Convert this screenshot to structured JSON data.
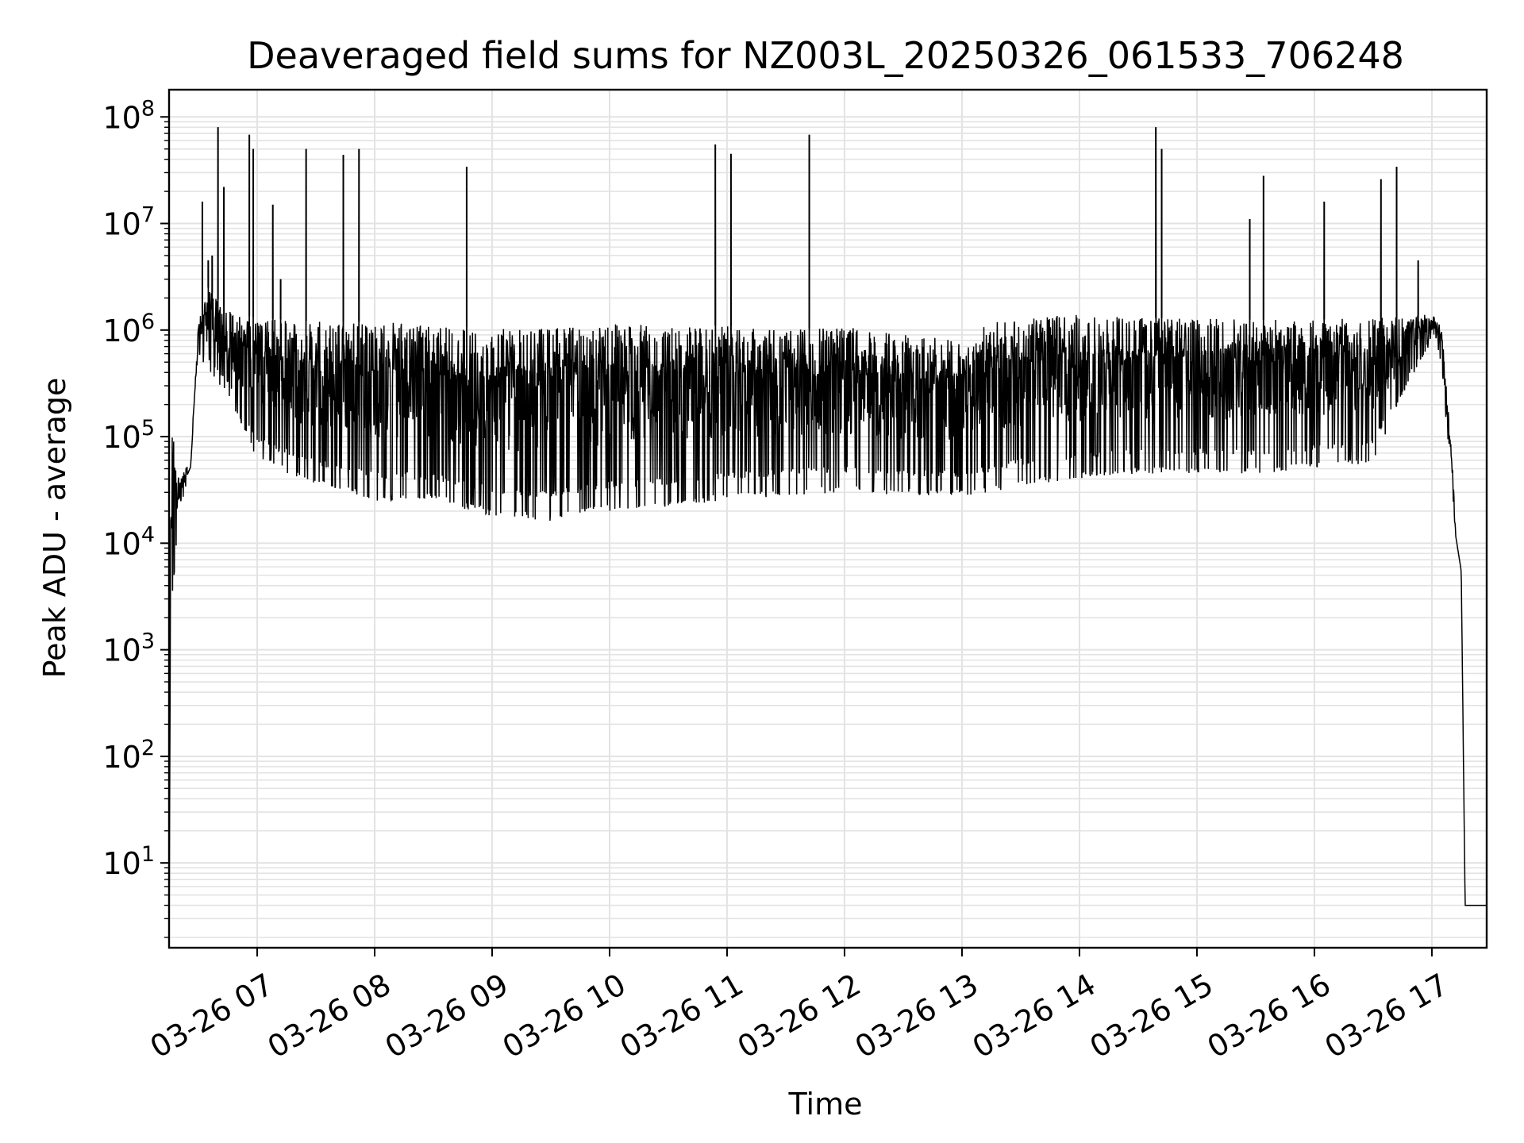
{
  "chart_data": {
    "type": "line",
    "title": "Deaveraged field sums for NZ003L_20250326_061533_706248",
    "xlabel": "Time",
    "ylabel": "Peak ADU - average",
    "yscale": "log",
    "ylim": [
      1.6,
      180000000
    ],
    "xlim": [
      "03-26 06:15",
      "03-26 17:28"
    ],
    "grid": "major and minor, light gray",
    "line_color": "#000000",
    "x_ticks": [
      "03-26 07",
      "03-26 08",
      "03-26 09",
      "03-26 10",
      "03-26 11",
      "03-26 12",
      "03-26 13",
      "03-26 14",
      "03-26 15",
      "03-26 16",
      "03-26 17"
    ],
    "y_ticks": [
      {
        "base": "10",
        "exp": "1"
      },
      {
        "base": "10",
        "exp": "2"
      },
      {
        "base": "10",
        "exp": "3"
      },
      {
        "base": "10",
        "exp": "4"
      },
      {
        "base": "10",
        "exp": "5"
      },
      {
        "base": "10",
        "exp": "6"
      },
      {
        "base": "10",
        "exp": "7"
      },
      {
        "base": "10",
        "exp": "8"
      }
    ],
    "envelope": [
      {
        "t": "06:15",
        "low": 1.6,
        "high": 1.6
      },
      {
        "t": "06:16",
        "low": 2000,
        "high": 150000
      },
      {
        "t": "06:20",
        "low": 20000,
        "high": 40000
      },
      {
        "t": "06:26",
        "low": 45000,
        "high": 60000
      },
      {
        "t": "06:30",
        "low": 600000,
        "high": 1200000
      },
      {
        "t": "06:35",
        "low": 400000,
        "high": 2500000
      },
      {
        "t": "06:45",
        "low": 250000,
        "high": 1500000
      },
      {
        "t": "07:00",
        "low": 60000,
        "high": 1300000
      },
      {
        "t": "07:30",
        "low": 35000,
        "high": 1200000
      },
      {
        "t": "08:00",
        "low": 25000,
        "high": 1200000
      },
      {
        "t": "08:30",
        "low": 25000,
        "high": 1100000
      },
      {
        "t": "09:00",
        "low": 18000,
        "high": 1050000
      },
      {
        "t": "09:30",
        "low": 16000,
        "high": 1050000
      },
      {
        "t": "10:00",
        "low": 20000,
        "high": 1150000
      },
      {
        "t": "10:30",
        "low": 22000,
        "high": 1100000
      },
      {
        "t": "11:00",
        "low": 25000,
        "high": 1100000
      },
      {
        "t": "11:30",
        "low": 28000,
        "high": 1000000
      },
      {
        "t": "12:00",
        "low": 30000,
        "high": 1100000
      },
      {
        "t": "12:30",
        "low": 28000,
        "high": 900000
      },
      {
        "t": "13:00",
        "low": 28000,
        "high": 800000
      },
      {
        "t": "13:15",
        "low": 30000,
        "high": 1200000
      },
      {
        "t": "13:30",
        "low": 35000,
        "high": 1300000
      },
      {
        "t": "14:00",
        "low": 40000,
        "high": 1400000
      },
      {
        "t": "14:30",
        "low": 45000,
        "high": 1300000
      },
      {
        "t": "15:00",
        "low": 45000,
        "high": 1300000
      },
      {
        "t": "15:30",
        "low": 45000,
        "high": 1250000
      },
      {
        "t": "16:00",
        "low": 50000,
        "high": 1250000
      },
      {
        "t": "16:30",
        "low": 55000,
        "high": 1300000
      },
      {
        "t": "16:45",
        "low": 250000,
        "high": 1350000
      },
      {
        "t": "17:00",
        "low": 800000,
        "high": 1400000
      },
      {
        "t": "17:05",
        "low": 500000,
        "high": 1100000
      },
      {
        "t": "17:10",
        "low": 30000,
        "high": 80000
      },
      {
        "t": "17:12",
        "low": 10000,
        "high": 15000
      },
      {
        "t": "17:15",
        "low": 5000,
        "high": 6000
      },
      {
        "t": "17:17",
        "low": 4,
        "high": 4
      },
      {
        "t": "17:28",
        "low": 4,
        "high": 4
      }
    ],
    "spikes": [
      {
        "t": "06:32",
        "value": 16000000
      },
      {
        "t": "06:35",
        "value": 4500000
      },
      {
        "t": "06:37",
        "value": 5000000
      },
      {
        "t": "06:40",
        "value": 80000000
      },
      {
        "t": "06:43",
        "value": 22000000
      },
      {
        "t": "06:56",
        "value": 68000000
      },
      {
        "t": "06:58",
        "value": 50000000
      },
      {
        "t": "07:08",
        "value": 15000000
      },
      {
        "t": "07:12",
        "value": 3000000
      },
      {
        "t": "07:25",
        "value": 50000000
      },
      {
        "t": "07:44",
        "value": 44000000
      },
      {
        "t": "07:52",
        "value": 50000000
      },
      {
        "t": "08:47",
        "value": 34000000
      },
      {
        "t": "10:54",
        "value": 55000000
      },
      {
        "t": "11:02",
        "value": 45000000
      },
      {
        "t": "11:42",
        "value": 68000000
      },
      {
        "t": "14:39",
        "value": 80000000
      },
      {
        "t": "14:42",
        "value": 50000000
      },
      {
        "t": "15:27",
        "value": 11000000
      },
      {
        "t": "15:34",
        "value": 28000000
      },
      {
        "t": "16:05",
        "value": 16000000
      },
      {
        "t": "16:34",
        "value": 26000000
      },
      {
        "t": "16:42",
        "value": 34000000
      },
      {
        "t": "16:53",
        "value": 4500000
      }
    ]
  }
}
